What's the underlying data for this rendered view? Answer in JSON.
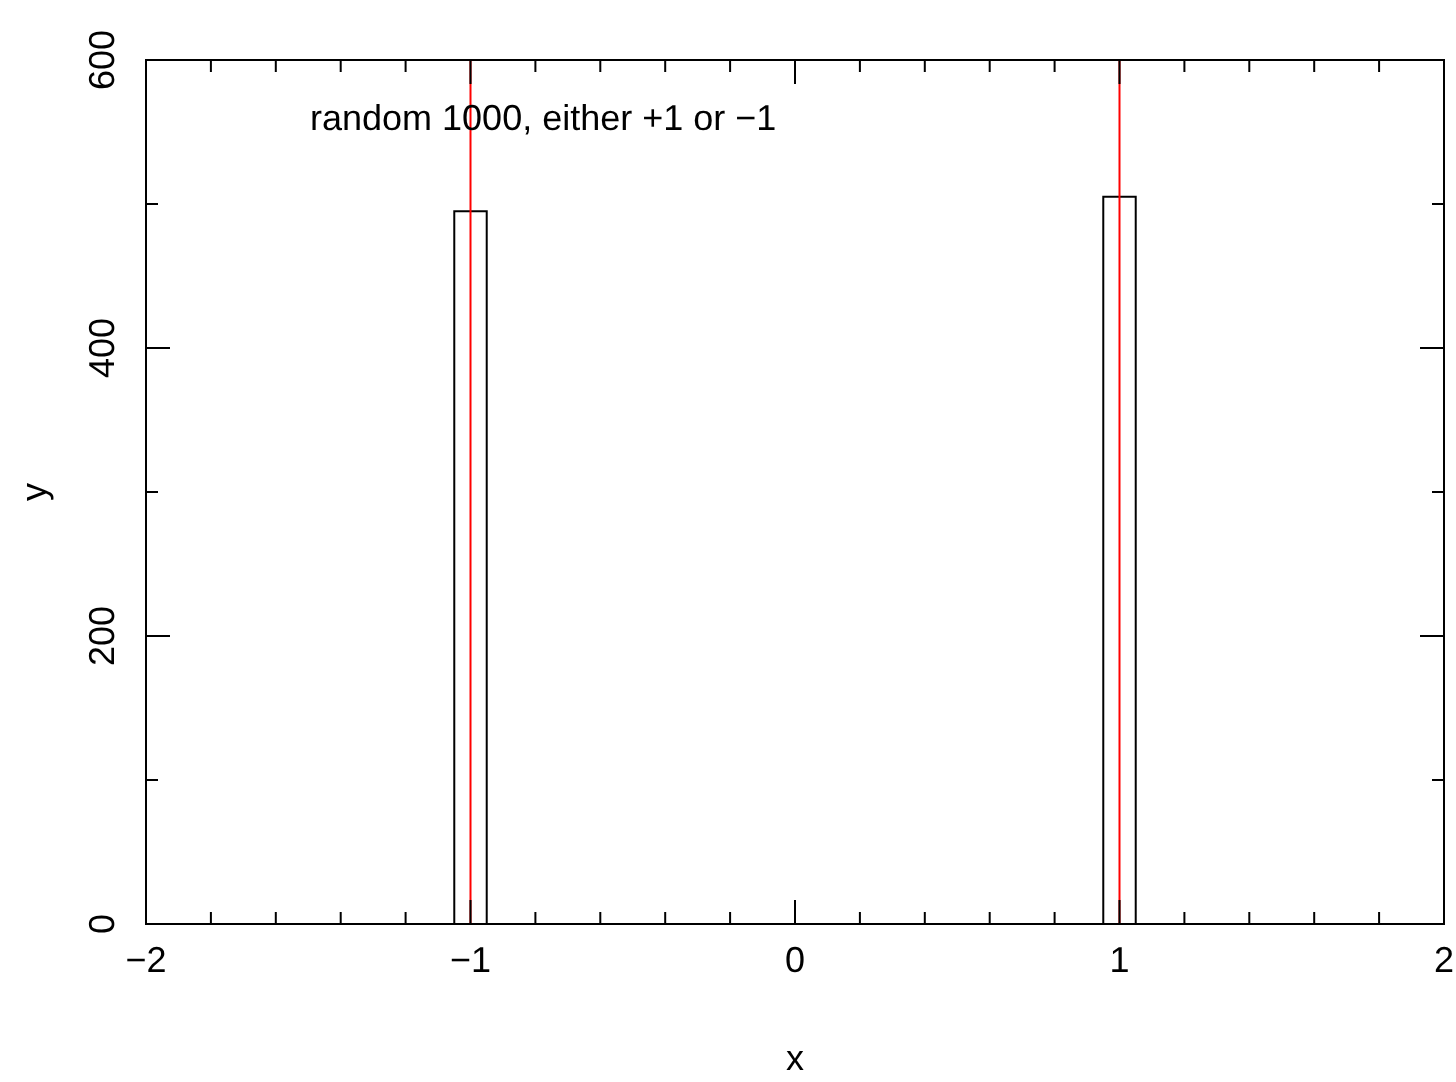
{
  "chart_data": {
    "type": "histogram",
    "xlabel": "x",
    "ylabel": "y",
    "annotations": [
      "random 1000, either +1 or −1"
    ],
    "bins": [
      -1.05,
      -0.95,
      0.95,
      1.05
    ],
    "values": [
      495,
      0,
      505
    ],
    "color": "#000000",
    "xlim": [
      -2,
      2
    ],
    "xticks": [
      -2,
      {
        "value": -1.8,
        "label": null
      },
      {
        "value": -1.6,
        "label": null
      },
      {
        "value": -1.4,
        "label": null
      },
      {
        "value": -1.2,
        "label": null
      },
      -1,
      {
        "value": -0.8,
        "label": null
      },
      {
        "value": -0.6,
        "label": null
      },
      {
        "value": -0.4,
        "label": null
      },
      {
        "value": -0.2,
        "label": null
      },
      0,
      {
        "value": 0.2,
        "label": null
      },
      {
        "value": 0.4,
        "label": null
      },
      {
        "value": 0.6,
        "label": null
      },
      {
        "value": 0.8,
        "label": null
      },
      1,
      {
        "value": 1.2,
        "label": null
      },
      {
        "value": 1.4,
        "label": null
      },
      {
        "value": 1.6,
        "label": null
      },
      {
        "value": 1.8,
        "label": null
      },
      2
    ],
    "ylim": [
      0,
      600
    ],
    "yticks": [
      0,
      {
        "value": 100,
        "label": null
      },
      200,
      {
        "value": 300,
        "label": null
      },
      400,
      {
        "value": 500,
        "label": null
      },
      600
    ],
    "ref_lines": [
      {
        "axis": "x",
        "value": -1,
        "color": "#ff0000"
      },
      {
        "axis": "x",
        "value": 1,
        "color": "#ff0000"
      }
    ],
    "grid": false,
    "legend": false
  }
}
